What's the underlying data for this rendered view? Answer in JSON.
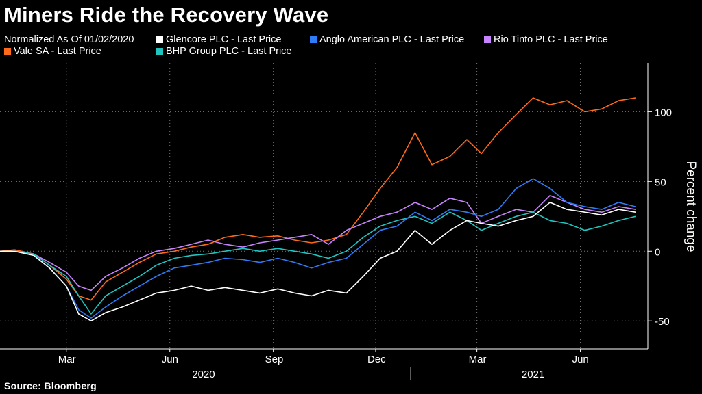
{
  "title": "Miners Ride the Recovery Wave",
  "normalized_note": "Normalized As Of 01/02/2020",
  "source": "Source: Bloomberg",
  "chart_data": {
    "type": "line",
    "ylabel": "Percent change",
    "ylim": [
      -70,
      135
    ],
    "yticks": [
      -50,
      0,
      50,
      100
    ],
    "ytick_labels": [
      "-50",
      "0",
      "50",
      "100"
    ],
    "grid": true,
    "grid_style": "dotted",
    "legend_placement": "top",
    "x_month_ticks": [
      {
        "date": "2020-03",
        "label": "Mar"
      },
      {
        "date": "2020-06",
        "label": "Jun"
      },
      {
        "date": "2020-09",
        "label": "Sep"
      },
      {
        "date": "2020-12",
        "label": "Dec"
      },
      {
        "date": "2021-03",
        "label": "Mar"
      },
      {
        "date": "2021-06",
        "label": "Jun"
      }
    ],
    "x_year_labels": [
      {
        "year": "2020",
        "label": "2020"
      },
      {
        "year": "2021",
        "label": "2021"
      }
    ],
    "x": [
      "2020-01-02",
      "2020-01-15",
      "2020-02-01",
      "2020-02-15",
      "2020-03-01",
      "2020-03-12",
      "2020-03-23",
      "2020-04-05",
      "2020-04-20",
      "2020-05-05",
      "2020-05-20",
      "2020-06-05",
      "2020-06-20",
      "2020-07-05",
      "2020-07-20",
      "2020-08-05",
      "2020-08-20",
      "2020-09-05",
      "2020-09-20",
      "2020-10-05",
      "2020-10-20",
      "2020-11-05",
      "2020-11-20",
      "2020-12-05",
      "2020-12-20",
      "2021-01-05",
      "2021-01-20",
      "2021-02-05",
      "2021-02-20",
      "2021-03-05",
      "2021-03-20",
      "2021-04-05",
      "2021-04-20",
      "2021-05-05",
      "2021-05-20",
      "2021-06-05",
      "2021-06-20",
      "2021-07-05",
      "2021-07-20"
    ],
    "series": [
      {
        "name": "Vale SA - Last Price",
        "color": "#ff6a1a",
        "values": [
          0,
          1,
          -2,
          -10,
          -20,
          -32,
          -35,
          -22,
          -15,
          -8,
          -2,
          0,
          3,
          5,
          10,
          12,
          10,
          11,
          8,
          6,
          8,
          12,
          28,
          45,
          60,
          85,
          62,
          68,
          80,
          70,
          85,
          98,
          110,
          105,
          108,
          100,
          102,
          108,
          110
        ]
      },
      {
        "name": "Glencore PLC - Last Price",
        "color": "#ffffff",
        "values": [
          0,
          0,
          -3,
          -12,
          -25,
          -45,
          -50,
          -44,
          -40,
          -35,
          -30,
          -28,
          -25,
          -28,
          -26,
          -28,
          -30,
          -27,
          -30,
          -32,
          -28,
          -30,
          -18,
          -5,
          0,
          15,
          5,
          15,
          22,
          20,
          18,
          22,
          25,
          35,
          30,
          28,
          26,
          30,
          28
        ]
      },
      {
        "name": "Anglo American PLC - Last Price",
        "color": "#2e7cf6",
        "values": [
          0,
          0,
          -3,
          -12,
          -25,
          -42,
          -48,
          -40,
          -32,
          -25,
          -18,
          -12,
          -10,
          -8,
          -5,
          -6,
          -8,
          -5,
          -8,
          -12,
          -8,
          -5,
          5,
          15,
          18,
          28,
          22,
          30,
          28,
          25,
          30,
          45,
          52,
          45,
          35,
          32,
          30,
          35,
          32
        ]
      },
      {
        "name": "Rio Tinto PLC - Last Price",
        "color": "#c883ff",
        "values": [
          0,
          0,
          -2,
          -8,
          -15,
          -25,
          -28,
          -18,
          -12,
          -5,
          0,
          2,
          5,
          8,
          5,
          3,
          6,
          8,
          10,
          12,
          5,
          15,
          20,
          25,
          28,
          35,
          30,
          38,
          35,
          20,
          25,
          30,
          28,
          40,
          35,
          30,
          28,
          32,
          30
        ]
      },
      {
        "name": "BHP Group PLC - Last Price",
        "color": "#22c4c0",
        "values": [
          0,
          0,
          -2,
          -10,
          -18,
          -32,
          -45,
          -32,
          -25,
          -18,
          -10,
          -5,
          -3,
          -2,
          0,
          2,
          0,
          2,
          0,
          -2,
          -5,
          0,
          10,
          18,
          22,
          25,
          20,
          28,
          22,
          15,
          20,
          25,
          28,
          22,
          20,
          15,
          18,
          22,
          25
        ]
      }
    ]
  }
}
